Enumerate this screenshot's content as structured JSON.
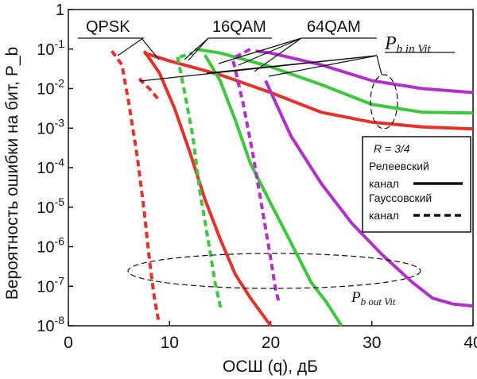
{
  "chart_data": {
    "type": "line",
    "xlabel": "ОСШ (q), дБ",
    "ylabel": "Вероятность ошибки на бит, P_b",
    "xlim": [
      0,
      40
    ],
    "ylim_log10": [
      -8,
      0
    ],
    "x_ticks": [
      0,
      10,
      20,
      30,
      40
    ],
    "y_ticks": [
      {
        "mant": "1",
        "exp": ""
      },
      {
        "mant": "10",
        "exp": "-1"
      },
      {
        "mant": "10",
        "exp": "-2"
      },
      {
        "mant": "10",
        "exp": "-3"
      },
      {
        "mant": "10",
        "exp": "-4"
      },
      {
        "mant": "10",
        "exp": "-5"
      },
      {
        "mant": "10",
        "exp": "-6"
      },
      {
        "mant": "10",
        "exp": "-7"
      },
      {
        "mant": "10",
        "exp": "-8"
      }
    ],
    "modulation_labels": [
      "QPSK",
      "16QAM",
      "64QAM"
    ],
    "annotation_in": {
      "main": "P",
      "sub": "b in Vit"
    },
    "annotation_out": {
      "main": "P",
      "sub": "b out Vit"
    },
    "legend": {
      "rate": "R = 3/4",
      "solid_label_1": "Релеевский",
      "solid_label_2": "канал",
      "dashed_label_1": "Гауссовский",
      "dashed_label_2": "канал"
    },
    "colors": {
      "QPSK": "#e8302a",
      "16QAM": "#3cc83c",
      "64QAM": "#b030c8"
    },
    "series": [
      {
        "name": "QPSK Rayleigh (in Vit)",
        "mod": "QPSK",
        "style": "solid",
        "points": [
          [
            7.5,
            -1.1
          ],
          [
            10,
            -1.3
          ],
          [
            15,
            -1.65
          ],
          [
            20,
            -2.1
          ],
          [
            25,
            -2.6
          ],
          [
            30,
            -2.85
          ],
          [
            35,
            -2.97
          ],
          [
            40,
            -3.02
          ]
        ]
      },
      {
        "name": "QPSK Rayleigh (out Vit)",
        "mod": "QPSK",
        "style": "solid",
        "points": [
          [
            7.5,
            -1.05
          ],
          [
            9,
            -1.6
          ],
          [
            10.5,
            -2.5
          ],
          [
            12,
            -3.6
          ],
          [
            13.5,
            -4.8
          ],
          [
            15,
            -5.8
          ],
          [
            16.5,
            -6.7
          ],
          [
            18,
            -7.3
          ],
          [
            20,
            -8
          ]
        ]
      },
      {
        "name": "QPSK Gauss (in Vit)",
        "mod": "QPSK",
        "style": "dashed",
        "points": [
          [
            7,
            -1.75
          ],
          [
            8,
            -2.0
          ],
          [
            9,
            -2.3
          ]
        ]
      },
      {
        "name": "QPSK Gauss (out Vit)",
        "mod": "QPSK",
        "style": "dashed",
        "points": [
          [
            4.3,
            -1.05
          ],
          [
            5.3,
            -1.4
          ],
          [
            6,
            -2.4
          ],
          [
            6.8,
            -3.7
          ],
          [
            7.5,
            -5.1
          ],
          [
            8,
            -6.3
          ],
          [
            8.5,
            -7.3
          ],
          [
            8.9,
            -7.85
          ]
        ]
      },
      {
        "name": "16QAM Rayleigh (in Vit)",
        "mod": "16QAM",
        "style": "solid",
        "points": [
          [
            12.5,
            -1.0
          ],
          [
            15,
            -1.1
          ],
          [
            20,
            -1.45
          ],
          [
            25,
            -1.9
          ],
          [
            30,
            -2.4
          ],
          [
            35,
            -2.6
          ],
          [
            40,
            -2.62
          ]
        ]
      },
      {
        "name": "16QAM Rayleigh (out Vit)",
        "mod": "16QAM",
        "style": "solid",
        "points": [
          [
            13.5,
            -1.15
          ],
          [
            15,
            -1.8
          ],
          [
            16.5,
            -2.8
          ],
          [
            18,
            -3.9
          ],
          [
            20,
            -4.9
          ],
          [
            22,
            -5.9
          ],
          [
            24,
            -6.9
          ],
          [
            25.5,
            -7.4
          ],
          [
            27,
            -8
          ]
        ]
      },
      {
        "name": "16QAM Gauss (in Vit)",
        "mod": "16QAM",
        "style": "dashed",
        "points": [
          [
            11,
            -1.2
          ],
          [
            12.3,
            -1.1
          ]
        ]
      },
      {
        "name": "16QAM Gauss (out Vit)",
        "mod": "16QAM",
        "style": "dashed",
        "points": [
          [
            10.8,
            -1.2
          ],
          [
            11.5,
            -2.1
          ],
          [
            12.3,
            -3.2
          ],
          [
            13,
            -4.6
          ],
          [
            13.8,
            -5.8
          ],
          [
            14.5,
            -6.9
          ],
          [
            15.1,
            -7.6
          ]
        ]
      },
      {
        "name": "64QAM Rayleigh (in Vit)",
        "mod": "64QAM",
        "style": "solid",
        "points": [
          [
            18.5,
            -1.05
          ],
          [
            20,
            -1.1
          ],
          [
            25,
            -1.4
          ],
          [
            30,
            -1.8
          ],
          [
            35,
            -2.0
          ],
          [
            40,
            -2.1
          ]
        ]
      },
      {
        "name": "64QAM Rayleigh (out Vit)",
        "mod": "64QAM",
        "style": "solid",
        "points": [
          [
            19.5,
            -1.8
          ],
          [
            22,
            -3.2
          ],
          [
            25,
            -4.4
          ],
          [
            28,
            -5.4
          ],
          [
            31,
            -6.2
          ],
          [
            34,
            -6.9
          ],
          [
            36,
            -7.3
          ],
          [
            38,
            -7.45
          ],
          [
            40,
            -7.5
          ]
        ]
      },
      {
        "name": "64QAM Gauss (in Vit)",
        "mod": "64QAM",
        "style": "dashed",
        "points": [
          [
            16.5,
            -1.2
          ],
          [
            18,
            -1.0
          ]
        ]
      },
      {
        "name": "64QAM Gauss (out Vit)",
        "mod": "64QAM",
        "style": "dashed",
        "points": [
          [
            16.3,
            -1.3
          ],
          [
            17.3,
            -2.4
          ],
          [
            18.2,
            -3.6
          ],
          [
            19,
            -4.8
          ],
          [
            19.8,
            -6.0
          ],
          [
            20.5,
            -7.1
          ],
          [
            20.8,
            -7.4
          ]
        ]
      }
    ]
  }
}
